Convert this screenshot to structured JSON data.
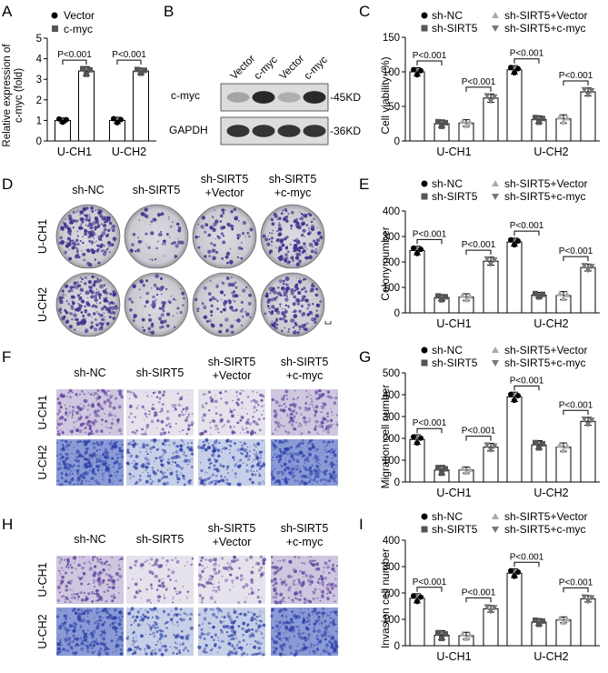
{
  "panels": {
    "A": {
      "letter": "A",
      "ylabel": "Relative expression of\nc-myc (fold)",
      "legend": [
        {
          "label": "Vector",
          "shape": "circle",
          "color": "#000000"
        },
        {
          "label": "c-myc",
          "shape": "square",
          "color": "#555555"
        }
      ],
      "pvalues": [
        "P<0.001",
        "P<0.001"
      ]
    },
    "B": {
      "letter": "B",
      "lanes": [
        "Vector",
        "c-myc",
        "Vector",
        "c-myc"
      ],
      "bands": [
        {
          "label": "c-myc",
          "size": "-45KD",
          "intensity": [
            0.35,
            0.95,
            0.3,
            0.95
          ]
        },
        {
          "label": "GAPDH",
          "size": "-36KD",
          "intensity": [
            0.9,
            0.9,
            0.9,
            0.9
          ]
        }
      ]
    },
    "C": {
      "letter": "C",
      "ylabel": "Cell viability (%)"
    },
    "D": {
      "letter": "D",
      "columns": [
        "sh-NC",
        "sh-SIRT5",
        "sh-SIRT5\n+Vector",
        "sh-SIRT5\n+c-myc"
      ],
      "rows": [
        "U-CH1",
        "U-CH2"
      ],
      "density": [
        [
          0.85,
          0.2,
          0.3,
          0.7
        ],
        [
          0.9,
          0.3,
          0.35,
          0.75
        ]
      ]
    },
    "E": {
      "letter": "E",
      "ylabel": "Colony number"
    },
    "F": {
      "letter": "F",
      "columns": [
        "sh-NC",
        "sh-SIRT5",
        "sh-SIRT5\n+Vector",
        "sh-SIRT5\n+c-myc"
      ],
      "rows": [
        "U-CH1",
        "U-CH2"
      ],
      "density": [
        [
          0.55,
          0.25,
          0.3,
          0.55
        ],
        [
          0.9,
          0.55,
          0.55,
          0.8
        ]
      ]
    },
    "G": {
      "letter": "G",
      "ylabel": "Migration cell number"
    },
    "H": {
      "letter": "H",
      "columns": [
        "sh-NC",
        "sh-SIRT5",
        "sh-SIRT5\n+Vector",
        "sh-SIRT5\n+c-myc"
      ],
      "rows": [
        "U-CH1",
        "U-CH2"
      ],
      "density": [
        [
          0.55,
          0.2,
          0.3,
          0.5
        ],
        [
          0.9,
          0.5,
          0.55,
          0.8
        ]
      ]
    },
    "I": {
      "letter": "I",
      "ylabel": "Invasion cell number"
    }
  },
  "four_group_legend": [
    {
      "label": "sh-NC",
      "shape": "circle",
      "color": "#000000"
    },
    {
      "label": "sh-SIRT5",
      "shape": "square",
      "color": "#555555"
    },
    {
      "label": "sh-SIRT5+Vector",
      "shape": "triangle-up",
      "color": "#aaaaaa"
    },
    {
      "label": "sh-SIRT5+c-myc",
      "shape": "triangle-down",
      "color": "#777777"
    }
  ],
  "chart_data": [
    {
      "panel": "A",
      "type": "bar",
      "categories": [
        "U-CH1",
        "U-CH2"
      ],
      "series": [
        {
          "name": "Vector",
          "values": [
            1.0,
            1.0
          ]
        },
        {
          "name": "c-myc",
          "values": [
            3.4,
            3.4
          ]
        }
      ],
      "ylabel": "Relative expression of c-myc (fold)",
      "ylim": [
        0,
        5
      ],
      "yticks": [
        0,
        1,
        2,
        3,
        4,
        5
      ],
      "comparisons": [
        {
          "text": "P<0.001"
        },
        {
          "text": "P<0.001"
        }
      ]
    },
    {
      "panel": "C",
      "type": "bar",
      "categories": [
        "U-CH1",
        "U-CH2"
      ],
      "series": [
        {
          "name": "sh-NC",
          "values": [
            100,
            103
          ]
        },
        {
          "name": "sh-SIRT5",
          "values": [
            25,
            31
          ]
        },
        {
          "name": "sh-SIRT5+Vector",
          "values": [
            26,
            32
          ]
        },
        {
          "name": "sh-SIRT5+c-myc",
          "values": [
            62,
            71
          ]
        }
      ],
      "ylabel": "Cell viability (%)",
      "ylim": [
        0,
        150
      ],
      "yticks": [
        0,
        50,
        100,
        150
      ],
      "comparisons": [
        "P<0.001",
        "P<0.001",
        "P<0.001",
        "P<0.001"
      ]
    },
    {
      "panel": "E",
      "type": "bar",
      "categories": [
        "U-CH1",
        "U-CH2"
      ],
      "series": [
        {
          "name": "sh-NC",
          "values": [
            245,
            278
          ]
        },
        {
          "name": "sh-SIRT5",
          "values": [
            60,
            70
          ]
        },
        {
          "name": "sh-SIRT5+Vector",
          "values": [
            62,
            68
          ]
        },
        {
          "name": "sh-SIRT5+c-myc",
          "values": [
            203,
            178
          ]
        }
      ],
      "ylabel": "Colony number",
      "ylim": [
        0,
        400
      ],
      "yticks": [
        0,
        100,
        200,
        300,
        400
      ],
      "comparisons": [
        "P<0.001",
        "P<0.001",
        "P<0.001",
        "P<0.001"
      ]
    },
    {
      "panel": "G",
      "type": "bar",
      "categories": [
        "U-CH1",
        "U-CH2"
      ],
      "series": [
        {
          "name": "sh-NC",
          "values": [
            195,
            390
          ]
        },
        {
          "name": "sh-SIRT5",
          "values": [
            55,
            170
          ]
        },
        {
          "name": "sh-SIRT5+Vector",
          "values": [
            55,
            160
          ]
        },
        {
          "name": "sh-SIRT5+c-myc",
          "values": [
            160,
            278
          ]
        }
      ],
      "ylabel": "Migration cell number",
      "ylim": [
        0,
        500
      ],
      "yticks": [
        0,
        100,
        200,
        300,
        400,
        500
      ],
      "comparisons": [
        "P<0.001",
        "P<0.001",
        "P<0.001",
        "P<0.001"
      ]
    },
    {
      "panel": "I",
      "type": "bar",
      "categories": [
        "U-CH1",
        "U-CH2"
      ],
      "series": [
        {
          "name": "sh-NC",
          "values": [
            180,
            275
          ]
        },
        {
          "name": "sh-SIRT5",
          "values": [
            40,
            90
          ]
        },
        {
          "name": "sh-SIRT5+Vector",
          "values": [
            38,
            98
          ]
        },
        {
          "name": "sh-SIRT5+c-myc",
          "values": [
            140,
            178
          ]
        }
      ],
      "ylabel": "Invasion cell number",
      "ylim": [
        0,
        400
      ],
      "yticks": [
        0,
        100,
        200,
        300,
        400
      ],
      "comparisons": [
        "P<0.001",
        "P<0.001",
        "P<0.001",
        "P<0.001"
      ]
    }
  ]
}
